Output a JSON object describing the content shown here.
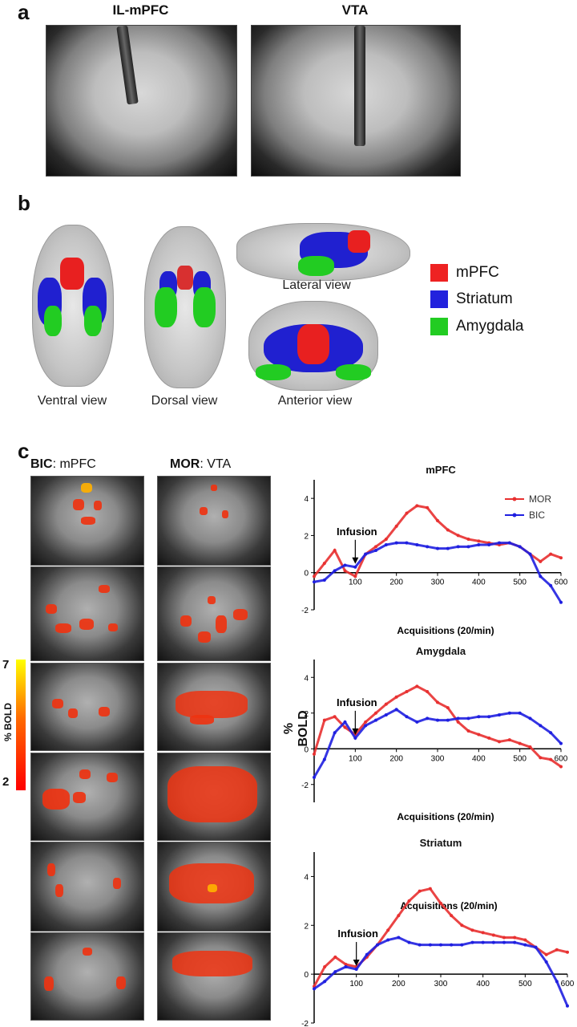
{
  "panels": {
    "a": {
      "letter": "a",
      "titles": [
        "IL-mPFC",
        "VTA"
      ]
    },
    "b": {
      "letter": "b",
      "view_labels": {
        "ventral": "Ventral view",
        "dorsal": "Dorsal view",
        "lateral": "Lateral view",
        "anterior": "Anterior view"
      },
      "legend": [
        {
          "label": "mPFC",
          "color": "#ee2222"
        },
        {
          "label": "Striatum",
          "color": "#2222dd"
        },
        {
          "label": "Amygdala",
          "color": "#22cc22"
        }
      ]
    },
    "c": {
      "letter": "c",
      "col_titles": [
        {
          "bold": "BIC",
          "rest": ": mPFC"
        },
        {
          "bold": "MOR",
          "rest": ": VTA"
        }
      ],
      "colorbar": {
        "max": "7",
        "min": "2",
        "label": "% BOLD",
        "colors": [
          "#ff0000",
          "#ff6a00",
          "#ffff00"
        ]
      },
      "y_axis_label": "% BOLD",
      "infusion_label": "Infusion"
    }
  },
  "chart_data": [
    {
      "type": "line",
      "title": "mPFC",
      "xlabel": "Acquisitions (20/min)",
      "ylabel": "% BOLD",
      "xlim": [
        0,
        600
      ],
      "ylim": [
        -2,
        5
      ],
      "x_ticks": [
        "100",
        "200",
        "300",
        "400",
        "500",
        "600"
      ],
      "y_ticks": [
        "4",
        "2",
        "0",
        "-2"
      ],
      "annotation": {
        "text": "Infusion",
        "x": 100
      },
      "legend": [
        {
          "name": "MOR",
          "color": "#e83030"
        },
        {
          "name": "BIC",
          "color": "#1f1fe0"
        }
      ],
      "series": [
        {
          "name": "MOR",
          "color": "#e83030",
          "x": [
            0,
            25,
            50,
            75,
            100,
            125,
            150,
            175,
            200,
            225,
            250,
            275,
            300,
            325,
            350,
            375,
            400,
            425,
            450,
            475,
            500,
            525,
            550,
            575,
            600
          ],
          "values": [
            -0.2,
            0.5,
            1.2,
            0.1,
            -0.2,
            1.0,
            1.4,
            1.8,
            2.5,
            3.2,
            3.6,
            3.5,
            2.8,
            2.3,
            2.0,
            1.8,
            1.7,
            1.6,
            1.5,
            1.6,
            1.4,
            1.0,
            0.6,
            1.0,
            0.8
          ]
        },
        {
          "name": "BIC",
          "color": "#1f1fe0",
          "x": [
            0,
            25,
            50,
            75,
            100,
            125,
            150,
            175,
            200,
            225,
            250,
            275,
            300,
            325,
            350,
            375,
            400,
            425,
            450,
            475,
            500,
            525,
            550,
            575,
            600
          ],
          "values": [
            -0.5,
            -0.4,
            0.1,
            0.4,
            0.3,
            1.0,
            1.2,
            1.5,
            1.6,
            1.6,
            1.5,
            1.4,
            1.3,
            1.3,
            1.4,
            1.4,
            1.5,
            1.5,
            1.6,
            1.6,
            1.4,
            1.0,
            -0.2,
            -0.7,
            -1.6
          ]
        }
      ]
    },
    {
      "type": "line",
      "title": "Amygdala",
      "xlabel": "Acquisitions (20/min)",
      "ylabel": "% BOLD",
      "xlim": [
        0,
        600
      ],
      "ylim": [
        -3,
        5
      ],
      "x_ticks": [
        "100",
        "200",
        "300",
        "400",
        "500",
        "600"
      ],
      "y_ticks": [
        "4",
        "2",
        "0",
        "-2"
      ],
      "annotation": {
        "text": "Infusion",
        "x": 100
      },
      "series": [
        {
          "name": "MOR",
          "color": "#e83030",
          "x": [
            0,
            25,
            50,
            75,
            100,
            125,
            150,
            175,
            200,
            225,
            250,
            275,
            300,
            325,
            350,
            375,
            400,
            425,
            450,
            475,
            500,
            525,
            550,
            575,
            600
          ],
          "values": [
            -0.3,
            1.6,
            1.8,
            1.2,
            0.8,
            1.5,
            2.0,
            2.5,
            2.9,
            3.2,
            3.5,
            3.2,
            2.6,
            2.3,
            1.5,
            1.0,
            0.8,
            0.6,
            0.4,
            0.5,
            0.3,
            0.1,
            -0.5,
            -0.6,
            -1.0
          ]
        },
        {
          "name": "BIC",
          "color": "#1f1fe0",
          "x": [
            0,
            25,
            50,
            75,
            100,
            125,
            150,
            175,
            200,
            225,
            250,
            275,
            300,
            325,
            350,
            375,
            400,
            425,
            450,
            475,
            500,
            525,
            550,
            575,
            600
          ],
          "values": [
            -1.6,
            -0.6,
            0.9,
            1.5,
            0.6,
            1.3,
            1.6,
            1.9,
            2.2,
            1.8,
            1.5,
            1.7,
            1.6,
            1.6,
            1.7,
            1.7,
            1.8,
            1.8,
            1.9,
            2.0,
            2.0,
            1.7,
            1.3,
            0.9,
            0.3
          ]
        }
      ]
    },
    {
      "type": "line",
      "title": "Striatum",
      "xlabel": "Acquisitions (20/min)",
      "ylabel": "% BOLD",
      "xlim": [
        0,
        600
      ],
      "ylim": [
        -2,
        5
      ],
      "x_ticks": [
        "100",
        "200",
        "300",
        "400",
        "500",
        "600"
      ],
      "y_ticks": [
        "4",
        "2",
        "0",
        "-2"
      ],
      "annotation": {
        "text": "Infusion",
        "x": 100
      },
      "series": [
        {
          "name": "MOR",
          "color": "#e83030",
          "x": [
            0,
            25,
            50,
            75,
            100,
            125,
            150,
            175,
            200,
            225,
            250,
            275,
            300,
            325,
            350,
            375,
            400,
            425,
            450,
            475,
            500,
            525,
            550,
            575,
            600
          ],
          "values": [
            -0.5,
            0.3,
            0.7,
            0.4,
            0.3,
            0.7,
            1.2,
            1.8,
            2.4,
            3.0,
            3.4,
            3.5,
            2.9,
            2.4,
            2.0,
            1.8,
            1.7,
            1.6,
            1.5,
            1.5,
            1.4,
            1.1,
            0.8,
            1.0,
            0.9
          ]
        },
        {
          "name": "BIC",
          "color": "#1f1fe0",
          "x": [
            0,
            25,
            50,
            75,
            100,
            125,
            150,
            175,
            200,
            225,
            250,
            275,
            300,
            325,
            350,
            375,
            400,
            425,
            450,
            475,
            500,
            525,
            550,
            575,
            600
          ],
          "values": [
            -0.6,
            -0.3,
            0.1,
            0.3,
            0.2,
            0.8,
            1.2,
            1.4,
            1.5,
            1.3,
            1.2,
            1.2,
            1.2,
            1.2,
            1.2,
            1.3,
            1.3,
            1.3,
            1.3,
            1.3,
            1.2,
            1.1,
            0.5,
            -0.3,
            -1.3
          ]
        }
      ]
    }
  ]
}
